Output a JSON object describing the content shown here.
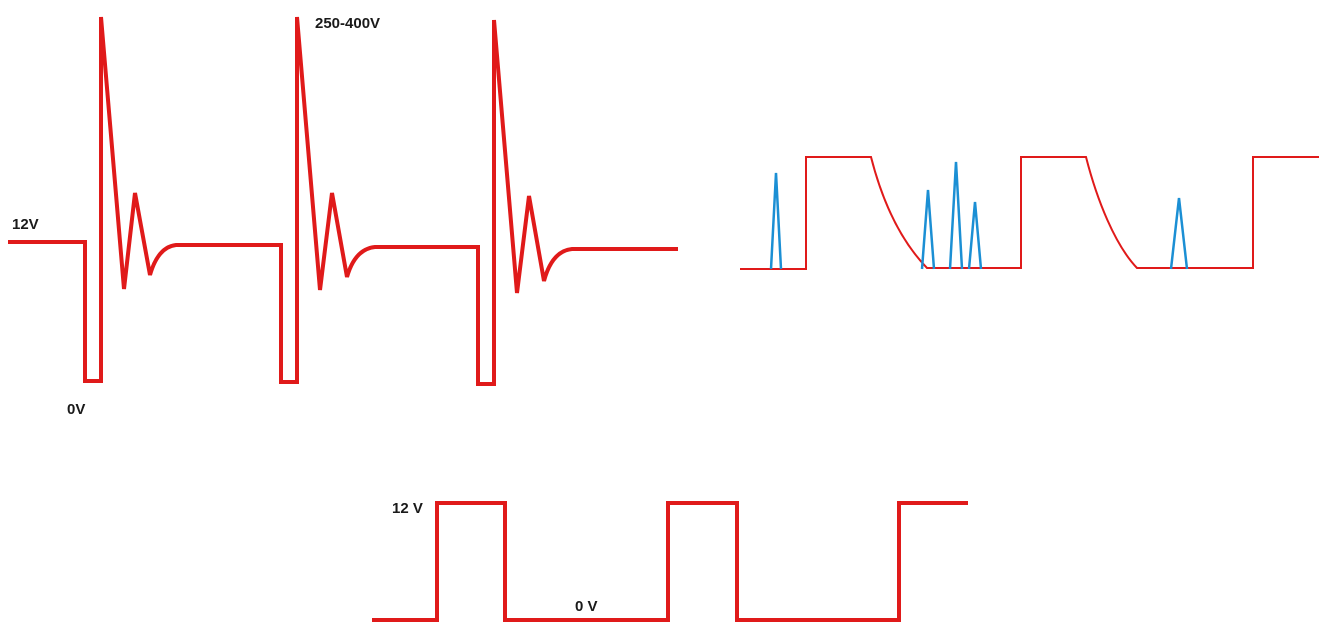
{
  "colors": {
    "waveform": "#e01a1a",
    "spike": "#1b8fd4",
    "label": "#1a1a1a"
  },
  "ignition_waveform": {
    "label_supply": "12V",
    "label_ground": "0V",
    "label_peak": "250-400V"
  },
  "pulse_waveform": {
    "label_high": "12 V",
    "label_low": "0 V"
  }
}
